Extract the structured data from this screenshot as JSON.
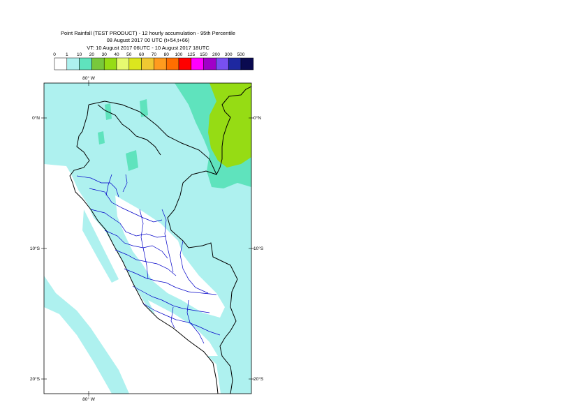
{
  "title": {
    "line1": "Point Rainfall (TEST PRODUCT) - 12 hourly accumulation - 95th Percentile",
    "line2": "08 August 2017 00 UTC (t+54,t+66)",
    "line3": "VT: 10 August 2017 06UTC - 10 August 2017 18UTC"
  },
  "legend": {
    "thresholds": [
      "0",
      "1",
      "10",
      "20",
      "30",
      "40",
      "50",
      "60",
      "70",
      "80",
      "100",
      "125",
      "150",
      "200",
      "300",
      "500"
    ],
    "colors": [
      "#ffffff",
      "#aef1ef",
      "#5fe3bd",
      "#78c83c",
      "#96dc14",
      "#e6fa70",
      "#dce61e",
      "#f0c832",
      "#ff9b1e",
      "#ff6e00",
      "#ff0000",
      "#ff00ff",
      "#a000c8",
      "#7850f0",
      "#1e28a0",
      "#0a0a50"
    ]
  },
  "map": {
    "lon_top_label": "80° W",
    "lon_bottom_label": "80° W",
    "lat_labels_left": [
      "0°N",
      "10°S",
      "20°S"
    ],
    "lat_labels_right": [
      "0°N",
      "10°S",
      "20°S"
    ],
    "colors": {
      "ocean_light": "#aef1ef",
      "dry": "#ffffff",
      "moderate": "#5fe3bd",
      "heavy": "#96dc14",
      "coast": "#000000",
      "regions": "#0000c8"
    }
  }
}
